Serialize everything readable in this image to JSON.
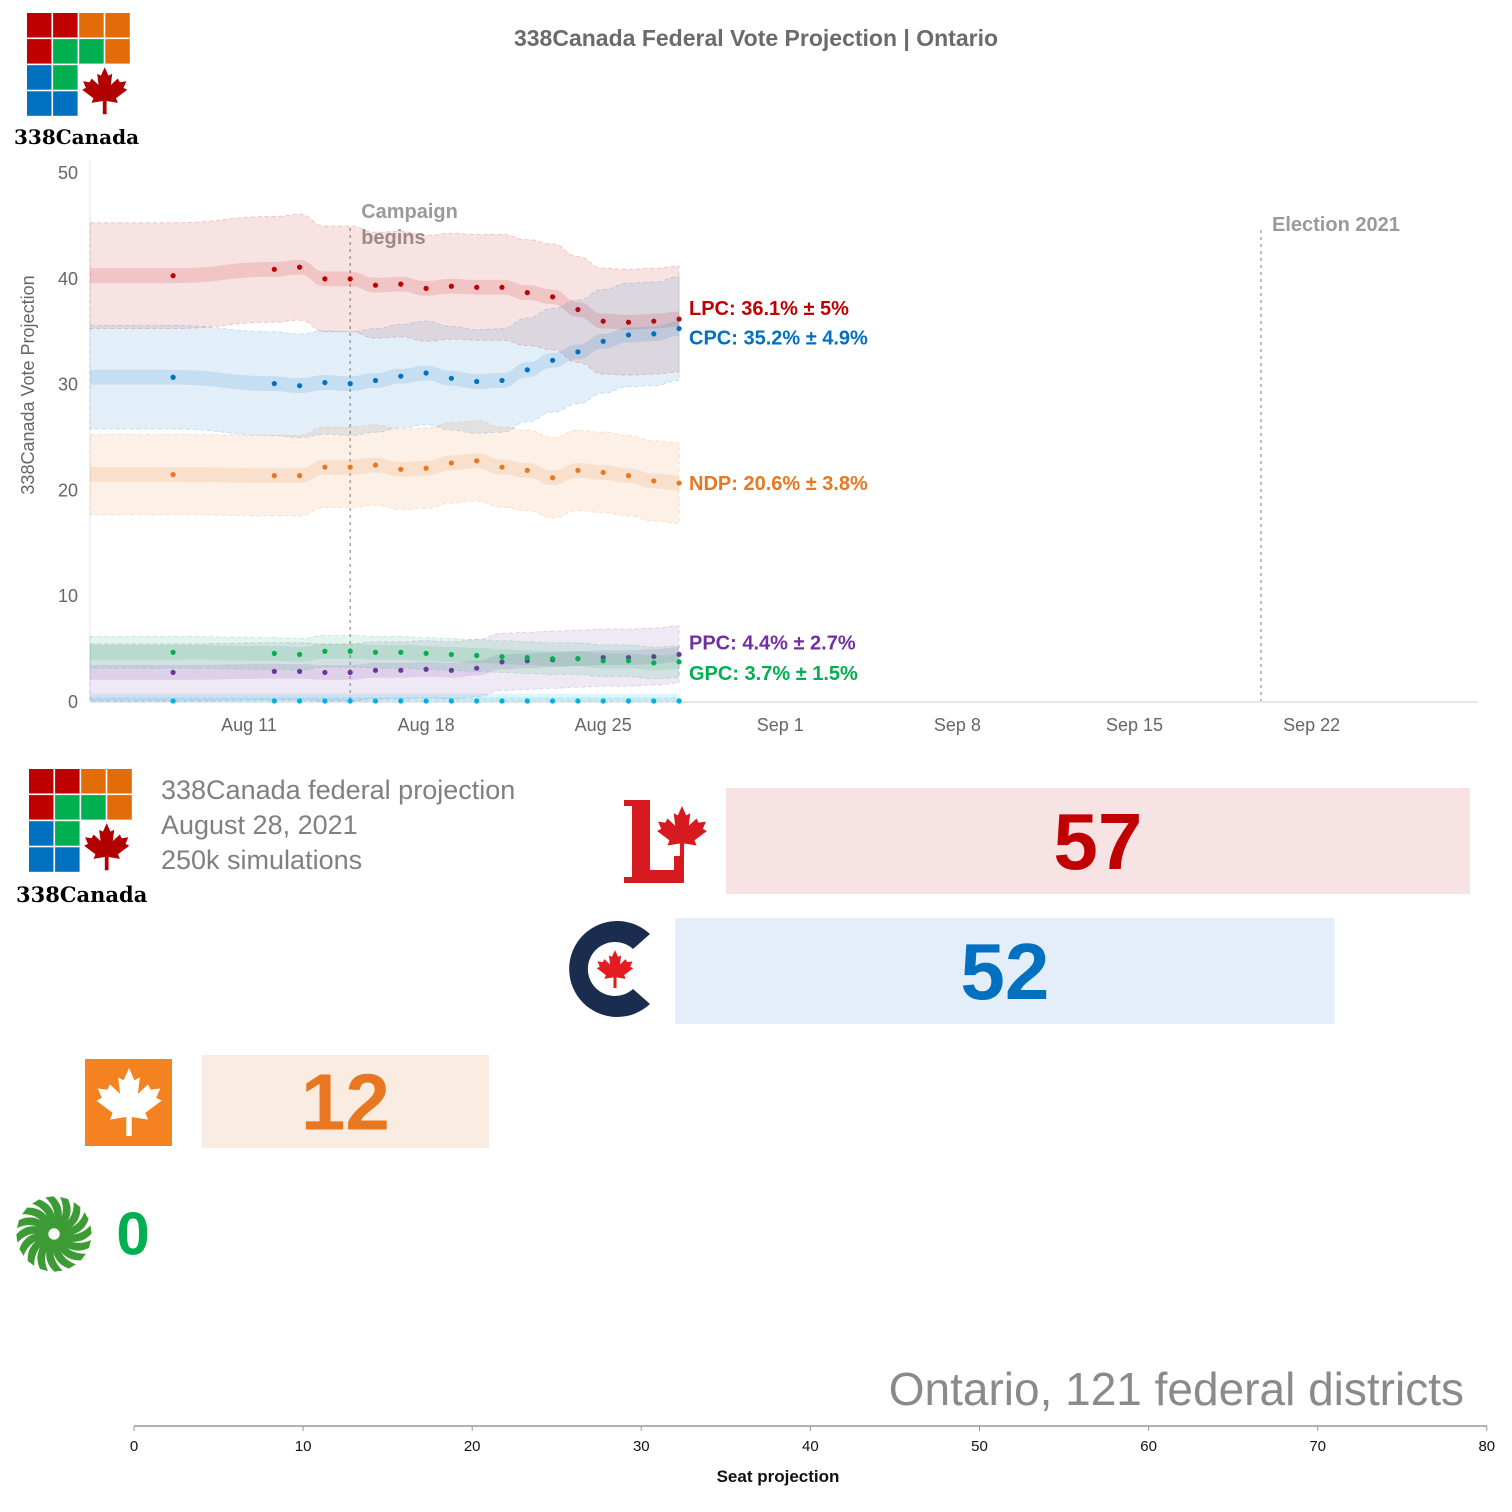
{
  "title": "338Canada Federal Vote Projection | Ontario",
  "brand": "338Canada",
  "info": {
    "line1": "338Canada federal projection",
    "line2": "August 28, 2021",
    "line3": "250k simulations"
  },
  "region_caption": "Ontario, 121 federal districts",
  "chart_data": [
    {
      "type": "line",
      "title": "338Canada Federal Vote Projection | Ontario",
      "ylabel": "338Canada Vote Projection",
      "xlabel": "",
      "ylim": [
        0,
        50
      ],
      "yticks": [
        "0",
        "10",
        "20",
        "30",
        "40",
        "50"
      ],
      "xlim": [
        "2021-08-04",
        "2021-09-29"
      ],
      "xticks": [
        {
          "date": "2021-08-11",
          "label": "Aug 11"
        },
        {
          "date": "2021-08-18",
          "label": "Aug 18"
        },
        {
          "date": "2021-08-25",
          "label": "Aug 25"
        },
        {
          "date": "2021-09-01",
          "label": "Sep 1"
        },
        {
          "date": "2021-09-08",
          "label": "Sep 8"
        },
        {
          "date": "2021-09-15",
          "label": "Sep 15"
        },
        {
          "date": "2021-09-22",
          "label": "Sep 22"
        }
      ],
      "grid": false,
      "annotations": [
        {
          "date": "2021-08-15",
          "label_1": "Campaign",
          "label_2": "begins"
        },
        {
          "date": "2021-09-20",
          "label_1": "Election 2021"
        }
      ],
      "x": [
        "2021-08-08",
        "2021-08-12",
        "2021-08-13",
        "2021-08-14",
        "2021-08-15",
        "2021-08-16",
        "2021-08-17",
        "2021-08-18",
        "2021-08-19",
        "2021-08-20",
        "2021-08-21",
        "2021-08-22",
        "2021-08-23",
        "2021-08-24",
        "2021-08-25",
        "2021-08-26",
        "2021-08-27",
        "2021-08-28"
      ],
      "series": [
        {
          "key": "lpc",
          "color": "#c00000",
          "moe": 5,
          "end_label": "LPC: 36.1% ± 5%",
          "values": [
            40.2,
            40.8,
            41.0,
            39.9,
            39.9,
            39.3,
            39.4,
            39.0,
            39.2,
            39.1,
            39.1,
            38.6,
            38.2,
            37.0,
            35.9,
            35.8,
            35.9,
            36.1
          ]
        },
        {
          "key": "cpc",
          "color": "#0070c0",
          "moe": 4.9,
          "end_label": "CPC: 35.2% ± 4.9%",
          "values": [
            30.6,
            30.0,
            29.8,
            30.1,
            30.0,
            30.3,
            30.7,
            31.0,
            30.5,
            30.2,
            30.3,
            31.3,
            32.2,
            33.0,
            34.0,
            34.6,
            34.7,
            35.2
          ]
        },
        {
          "key": "ndp",
          "color": "#e87722",
          "moe": 3.8,
          "end_label": "NDP: 20.6% ± 3.8%",
          "values": [
            21.4,
            21.3,
            21.3,
            22.1,
            22.1,
            22.3,
            21.9,
            22.0,
            22.5,
            22.7,
            22.1,
            21.8,
            21.1,
            21.8,
            21.6,
            21.3,
            20.8,
            20.6
          ]
        },
        {
          "key": "ppc",
          "color": "#7030a0",
          "moe": 2.7,
          "end_label": "PPC: 4.4% ± 2.7%",
          "values": [
            2.7,
            2.8,
            2.8,
            2.7,
            2.7,
            2.9,
            2.9,
            3.0,
            2.9,
            3.1,
            3.7,
            3.8,
            3.9,
            4.0,
            4.1,
            4.1,
            4.2,
            4.4
          ]
        },
        {
          "key": "gpc",
          "color": "#00b050",
          "moe": 1.5,
          "end_label": "GPC: 3.7% ± 1.5%",
          "values": [
            4.6,
            4.5,
            4.4,
            4.7,
            4.7,
            4.6,
            4.6,
            4.5,
            4.4,
            4.3,
            4.2,
            4.1,
            4.0,
            4.0,
            3.8,
            3.8,
            3.6,
            3.7
          ]
        },
        {
          "key": "other",
          "color": "#00b0e0",
          "moe": 0.3,
          "values": [
            0,
            0,
            0,
            0,
            0,
            0,
            0,
            0,
            0,
            0,
            0,
            0,
            0,
            0,
            0,
            0,
            0,
            0
          ]
        }
      ]
    },
    {
      "type": "bar",
      "orientation": "horizontal",
      "xlabel": "Seat projection",
      "xlim": [
        0,
        80
      ],
      "xticks": [
        "0",
        "10",
        "20",
        "30",
        "40",
        "50",
        "60",
        "70",
        "80"
      ],
      "parties": [
        {
          "key": "lpc",
          "seats": "57",
          "range": [
            35,
            79
          ],
          "color": "#c00000",
          "bar_color": "#f8e3e4",
          "logo": "liberal-logo"
        },
        {
          "key": "cpc",
          "seats": "52",
          "range": [
            32,
            71
          ],
          "color": "#0070c0",
          "bar_color": "#e3eef8",
          "logo": "conservative-logo"
        },
        {
          "key": "ndp",
          "seats": "12",
          "range": [
            4,
            21
          ],
          "color": "#e87722",
          "bar_color": "#fbece1",
          "logo": "ndp-logo"
        },
        {
          "key": "gpc",
          "seats": "0",
          "range": null,
          "color": "#00b050",
          "bar_color": null,
          "logo": "green-logo"
        }
      ]
    }
  ]
}
